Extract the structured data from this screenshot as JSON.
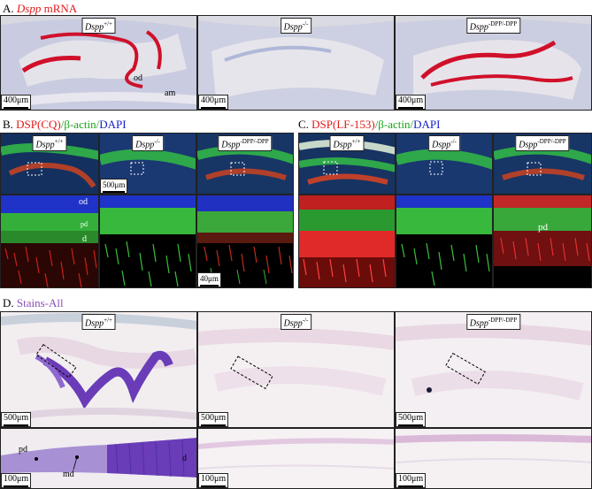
{
  "panelA": {
    "title_letter": "A.",
    "title_gene": "Dspp",
    "title_suffix": "mRNA",
    "images": [
      {
        "genotype": "Dspp",
        "sup": "+/+",
        "scale": "400μm"
      },
      {
        "genotype": "Dspp",
        "sup": "-/-",
        "scale": "400μm"
      },
      {
        "genotype": "Dspp",
        "sup": "-DPP/-DPP",
        "scale": "400μm"
      }
    ],
    "labels": {
      "od": "od",
      "am": "am"
    }
  },
  "panelB": {
    "letter": "B.",
    "t1": "DSP(CQ)",
    "t2": "/β-actin/",
    "t3": "DAPI",
    "images": [
      {
        "genotype": "Dspp",
        "sup": "+/+"
      },
      {
        "genotype": "Dspp",
        "sup": "-/-"
      },
      {
        "genotype": "Dspp",
        "sup": "-DPP/-DPP"
      }
    ],
    "scale_top": "500μm",
    "scale_bottom": "40μm",
    "labels": {
      "od": "od",
      "pd": "pd",
      "d": "d"
    }
  },
  "panelC": {
    "letter": "C.",
    "t1": "DSP(LF-153)",
    "t2": "/β-actin/",
    "t3": "DAPI",
    "images": [
      {
        "genotype": "Dspp",
        "sup": "+/+"
      },
      {
        "genotype": "Dspp",
        "sup": "-/-"
      },
      {
        "genotype": "Dspp",
        "sup": "-DPP/-DPP"
      }
    ],
    "labels": {
      "pd": "pd"
    }
  },
  "panelD": {
    "letter": "D.",
    "title": "Stains-All",
    "images": [
      {
        "genotype": "Dspp",
        "sup": "+/+",
        "scale": "500μm"
      },
      {
        "genotype": "Dspp",
        "sup": "-/-",
        "scale": "500μm"
      },
      {
        "genotype": "Dspp",
        "sup": "-DPP/-DPP",
        "scale": "500μm"
      }
    ],
    "scale_bottom": "100μm",
    "labels": {
      "pd": "pd",
      "md": "md",
      "d": "d"
    }
  },
  "colors": {
    "mrna_red": "#d0102a",
    "tissue_blue": "#b8c0dc",
    "green": "#3ec83a",
    "dapi_blue": "#2535c8",
    "stain_purple": "#6b3fb8"
  }
}
